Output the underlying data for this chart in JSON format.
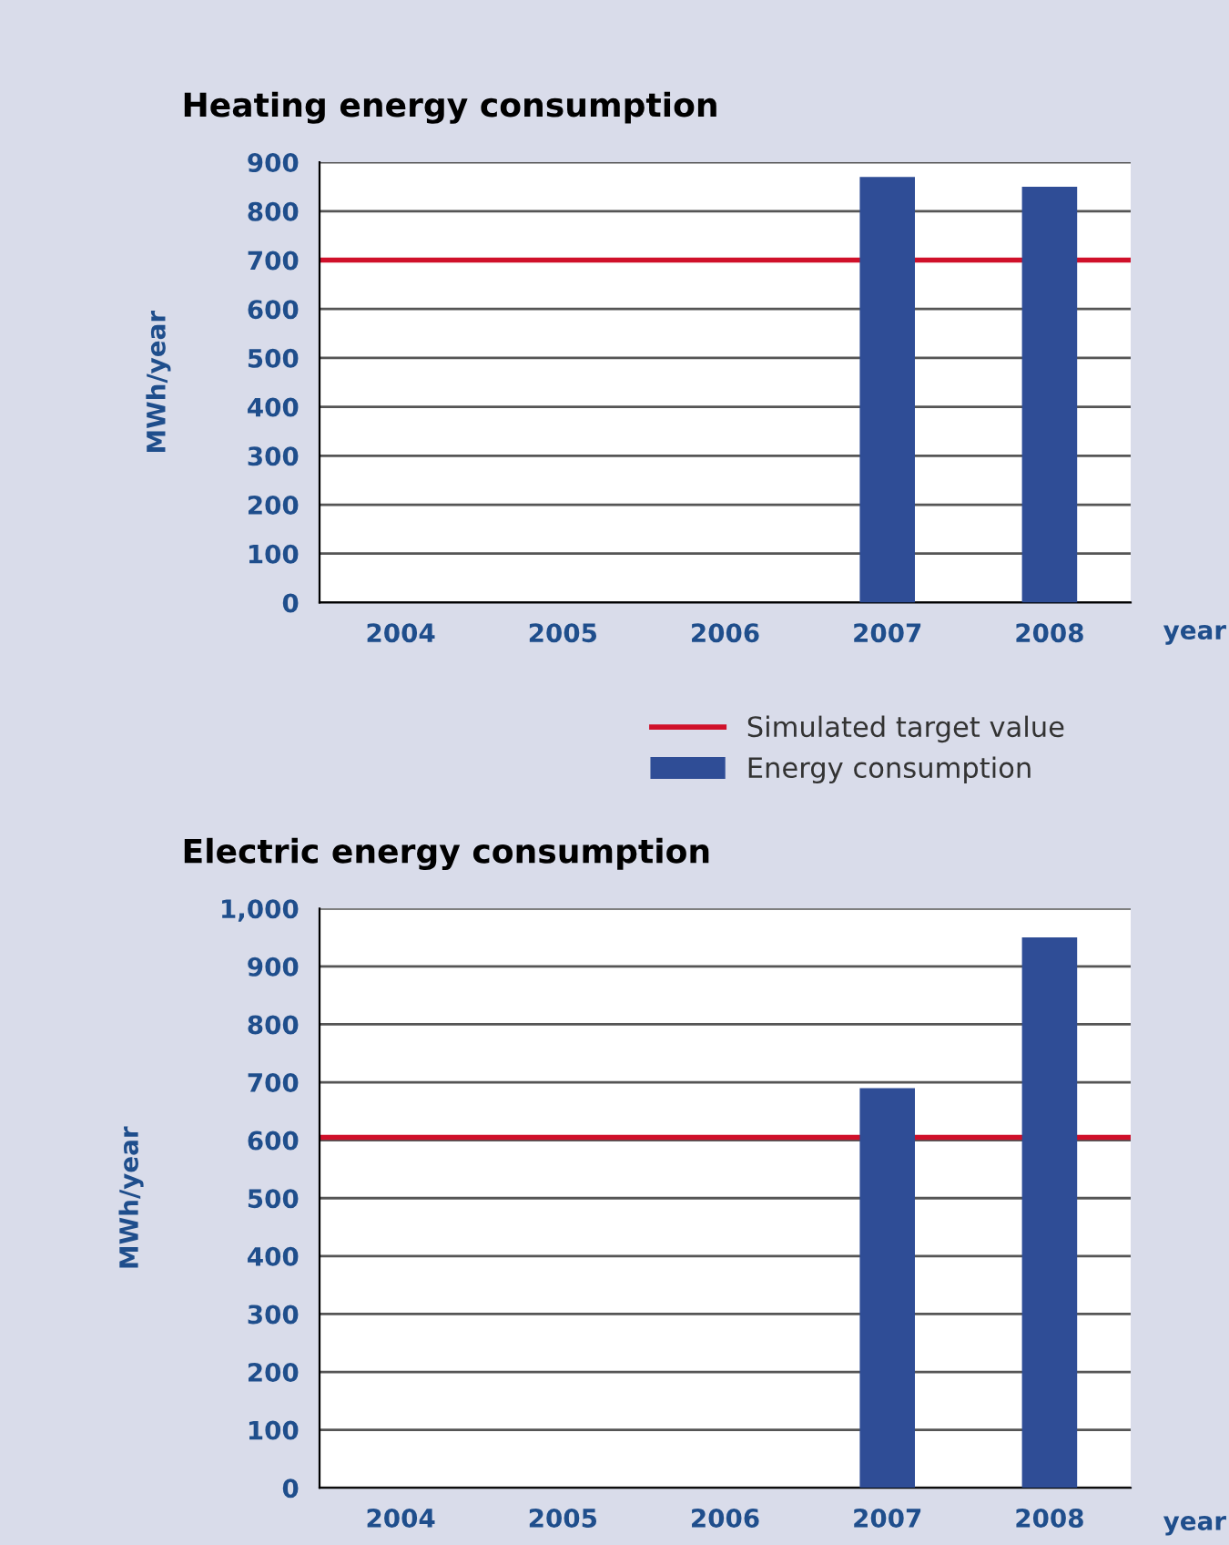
{
  "chart_data": [
    {
      "type": "bar",
      "title": "Heating energy consumption",
      "xlabel": "year",
      "ylabel": "MWh/year",
      "categories": [
        "2004",
        "2005",
        "2006",
        "2007",
        "2008"
      ],
      "series": [
        {
          "name": "Energy consumption",
          "color": "#2f4d96",
          "values": [
            null,
            null,
            null,
            870,
            850
          ]
        }
      ],
      "ref_lines": [
        {
          "axis": "y",
          "value": 700,
          "label": "Simulated target value",
          "color": "#d0102a"
        }
      ],
      "ylim": [
        0,
        900
      ],
      "yticks": [
        0,
        100,
        200,
        300,
        400,
        500,
        600,
        700,
        800,
        900
      ],
      "grid": "y",
      "legend": "bottom right"
    },
    {
      "type": "bar",
      "title": "Electric energy consumption",
      "xlabel": "year",
      "ylabel": "MWh/year",
      "categories": [
        "2004",
        "2005",
        "2006",
        "2007",
        "2008"
      ],
      "series": [
        {
          "color": "#2f4d96",
          "values": [
            null,
            null,
            null,
            690,
            950
          ]
        }
      ],
      "ref_lines": [
        {
          "axis": "y",
          "value": 605,
          "color": "#d0102a"
        }
      ],
      "ylim": [
        0,
        1000
      ],
      "yticks": [
        0,
        100,
        200,
        300,
        400,
        500,
        600,
        700,
        800,
        900,
        {
          "value": 1000,
          "label": "1,000"
        }
      ],
      "grid": "y"
    }
  ]
}
